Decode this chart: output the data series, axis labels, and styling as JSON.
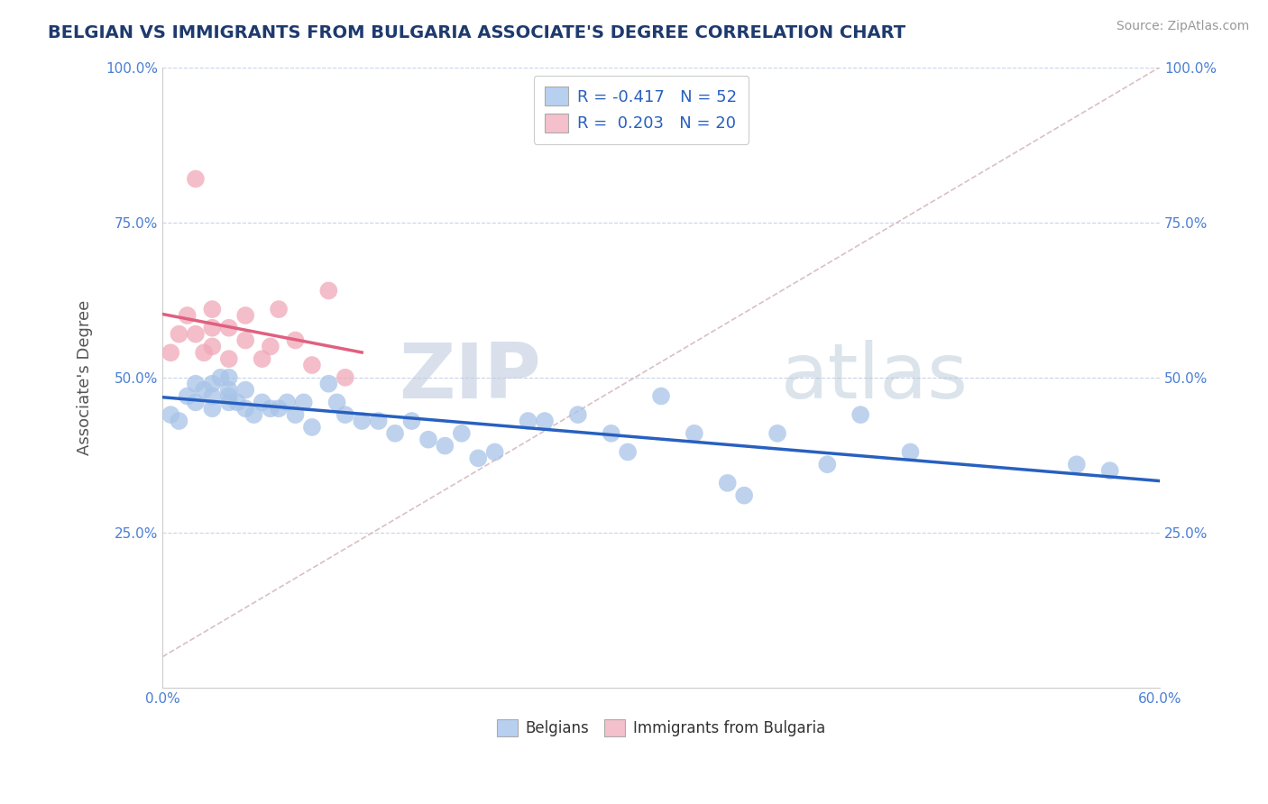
{
  "title": "BELGIAN VS IMMIGRANTS FROM BULGARIA ASSOCIATE'S DEGREE CORRELATION CHART",
  "source": "Source: ZipAtlas.com",
  "ylabel": "Associate's Degree",
  "xlim": [
    0.0,
    0.6
  ],
  "ylim": [
    0.0,
    1.0
  ],
  "xtick_vals": [
    0.0,
    0.1,
    0.2,
    0.3,
    0.4,
    0.5,
    0.6
  ],
  "ytick_vals": [
    0.25,
    0.5,
    0.75,
    1.0
  ],
  "blue_R": -0.417,
  "blue_N": 52,
  "pink_R": 0.203,
  "pink_N": 20,
  "blue_color": "#a8c4e8",
  "pink_color": "#f0a8b8",
  "blue_line_color": "#2860c0",
  "pink_line_color": "#e06080",
  "dash_line_color": "#d0b0b8",
  "legend_label_blue": "Belgians",
  "legend_label_pink": "Immigrants from Bulgaria",
  "blue_x": [
    0.005,
    0.01,
    0.015,
    0.02,
    0.02,
    0.025,
    0.03,
    0.03,
    0.03,
    0.035,
    0.04,
    0.04,
    0.04,
    0.04,
    0.045,
    0.05,
    0.05,
    0.055,
    0.06,
    0.065,
    0.07,
    0.075,
    0.08,
    0.085,
    0.09,
    0.1,
    0.105,
    0.11,
    0.12,
    0.13,
    0.14,
    0.15,
    0.16,
    0.17,
    0.18,
    0.19,
    0.2,
    0.22,
    0.23,
    0.25,
    0.27,
    0.28,
    0.3,
    0.32,
    0.34,
    0.35,
    0.37,
    0.4,
    0.42,
    0.45,
    0.55,
    0.57
  ],
  "blue_y": [
    0.44,
    0.43,
    0.47,
    0.46,
    0.49,
    0.48,
    0.47,
    0.45,
    0.49,
    0.5,
    0.47,
    0.48,
    0.46,
    0.5,
    0.46,
    0.45,
    0.48,
    0.44,
    0.46,
    0.45,
    0.45,
    0.46,
    0.44,
    0.46,
    0.42,
    0.49,
    0.46,
    0.44,
    0.43,
    0.43,
    0.41,
    0.43,
    0.4,
    0.39,
    0.41,
    0.37,
    0.38,
    0.43,
    0.43,
    0.44,
    0.41,
    0.38,
    0.47,
    0.41,
    0.33,
    0.31,
    0.41,
    0.36,
    0.44,
    0.38,
    0.36,
    0.35
  ],
  "pink_x": [
    0.005,
    0.01,
    0.015,
    0.02,
    0.02,
    0.025,
    0.03,
    0.03,
    0.03,
    0.04,
    0.04,
    0.05,
    0.05,
    0.06,
    0.065,
    0.07,
    0.08,
    0.09,
    0.1,
    0.11
  ],
  "pink_y": [
    0.54,
    0.57,
    0.6,
    0.82,
    0.57,
    0.54,
    0.55,
    0.58,
    0.61,
    0.53,
    0.58,
    0.56,
    0.6,
    0.53,
    0.55,
    0.61,
    0.56,
    0.52,
    0.64,
    0.5
  ],
  "background_color": "#ffffff",
  "grid_color": "#c8d4e8",
  "title_color": "#1e3a6e",
  "axis_color": "#888888",
  "tick_color": "#4a7fd4"
}
